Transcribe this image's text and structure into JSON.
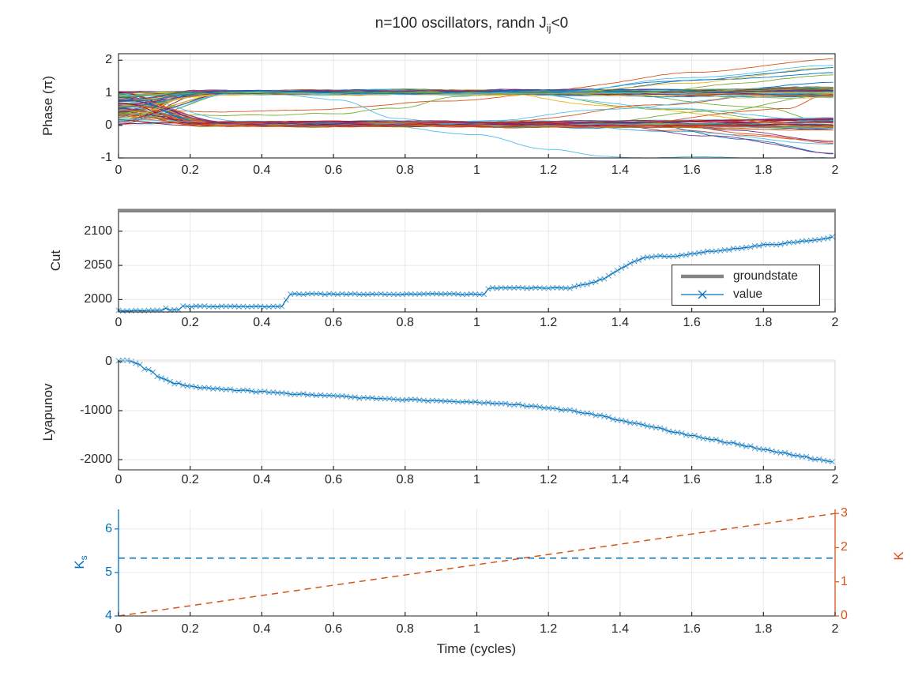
{
  "title": {
    "main": "n=100 oscillators, randn J",
    "sub": "ij",
    "end": "<0"
  },
  "xlabel": "Time (cycles)",
  "x_ticks": [
    {
      "v": 0,
      "label": "0"
    },
    {
      "v": 0.2,
      "label": "0.2"
    },
    {
      "v": 0.4,
      "label": "0.4"
    },
    {
      "v": 0.6,
      "label": "0.6"
    },
    {
      "v": 0.8,
      "label": "0.8"
    },
    {
      "v": 1,
      "label": "1"
    },
    {
      "v": 1.2,
      "label": "1.2"
    },
    {
      "v": 1.4,
      "label": "1.4"
    },
    {
      "v": 1.6,
      "label": "1.6"
    },
    {
      "v": 1.8,
      "label": "1.8"
    },
    {
      "v": 2,
      "label": "2"
    }
  ],
  "colors": {
    "axis": "#262626",
    "grid": "#e7e7e7",
    "grid_light_blue": "#e2ecf4",
    "frame_light": "#d9d9d9",
    "blue": "#0072BD",
    "orange": "#D95319",
    "gray": "#848484",
    "background": "#ffffff"
  },
  "chart_data": [
    {
      "name": "phase",
      "type": "line",
      "ylabel": "Phase (π)",
      "xlim": [
        0,
        2
      ],
      "ylim": [
        -1,
        2.2
      ],
      "grid": true,
      "yticks": [
        {
          "v": 2,
          "label": "2"
        },
        {
          "v": 1,
          "label": "1"
        },
        {
          "v": 0,
          "label": "0"
        },
        {
          "v": -1,
          "label": "-1"
        }
      ],
      "n_series": 100,
      "palette": [
        "#0072BD",
        "#D95319",
        "#EDB120",
        "#7E2F8E",
        "#77AC30",
        "#4DBEEE",
        "#A2142F"
      ],
      "bands": {
        "upper": 1.0,
        "lower": 0.04,
        "spread": 0.07,
        "converge_t": 0.2,
        "end_spread": 0.3
      },
      "generator": {
        "seed": 20,
        "start_min": 0.02,
        "start_max": 1.05,
        "noise_amp": 0.014,
        "sample_dt": 0.015,
        "divergers": {
          "up": 7,
          "down": 6,
          "cross_up": 4,
          "cross_down": 4,
          "t_start_min": 1.1,
          "t_start_max": 1.55,
          "up_min": 1.25,
          "up_max": 2.05,
          "down_min": -0.95,
          "down_max": -0.3
        }
      },
      "special_series": [
        {
          "idx": 5,
          "color": "#4DBEEE",
          "waypoints": [
            [
              0,
              0.62
            ],
            [
              0.22,
              0.05
            ],
            [
              0.72,
              0.02
            ],
            [
              1.0,
              -0.3
            ],
            [
              1.2,
              -0.72
            ],
            [
              1.35,
              -0.97
            ],
            [
              2,
              -1.0
            ]
          ]
        },
        {
          "idx": 8,
          "color": "#D95319",
          "waypoints": [
            [
              0,
              0.5
            ],
            [
              0.3,
              0.4
            ],
            [
              0.55,
              0.5
            ],
            [
              0.9,
              0.72
            ],
            [
              1.15,
              0.95
            ],
            [
              1.4,
              1.0
            ],
            [
              2,
              1.02
            ]
          ]
        },
        {
          "idx": 11,
          "color": "#77AC30",
          "waypoints": [
            [
              0,
              0.35
            ],
            [
              0.4,
              0.3
            ],
            [
              0.6,
              0.35
            ],
            [
              0.78,
              0.55
            ],
            [
              0.95,
              0.9
            ],
            [
              1.1,
              1.0
            ],
            [
              2,
              0.98
            ]
          ]
        },
        {
          "idx": 16,
          "color": "#4DBEEE",
          "waypoints": [
            [
              0,
              0.9
            ],
            [
              0.45,
              0.95
            ],
            [
              0.62,
              0.78
            ],
            [
              0.78,
              0.22
            ],
            [
              0.9,
              0.08
            ],
            [
              1.5,
              0.05
            ],
            [
              2,
              0.0
            ]
          ]
        }
      ]
    },
    {
      "name": "cut",
      "type": "line",
      "ylabel": "Cut",
      "ylim": [
        1982,
        2132
      ],
      "yticks": [
        {
          "v": 2100,
          "label": "2100"
        },
        {
          "v": 2050,
          "label": "2050"
        },
        {
          "v": 2000,
          "label": "2000"
        }
      ],
      "legend": [
        {
          "label": "groundstate",
          "color": "#848484"
        },
        {
          "label": "value",
          "color": "#0072BD"
        }
      ],
      "groundstate": 2130,
      "marker": "x",
      "sample_dt": 0.012,
      "keypoints": [
        [
          0,
          1984
        ],
        [
          0.12,
          1984
        ],
        [
          0.125,
          1992
        ],
        [
          0.135,
          1985
        ],
        [
          0.17,
          1985
        ],
        [
          0.18,
          1990
        ],
        [
          0.46,
          1990
        ],
        [
          0.475,
          2008
        ],
        [
          1.02,
          2008
        ],
        [
          1.035,
          2017
        ],
        [
          1.26,
          2017
        ],
        [
          1.3,
          2022
        ],
        [
          1.33,
          2026
        ],
        [
          1.36,
          2032
        ],
        [
          1.4,
          2045
        ],
        [
          1.43,
          2054
        ],
        [
          1.46,
          2060
        ],
        [
          1.49,
          2063
        ],
        [
          1.56,
          2064
        ],
        [
          1.6,
          2067
        ],
        [
          1.64,
          2070
        ],
        [
          1.7,
          2073
        ],
        [
          1.75,
          2076
        ],
        [
          1.8,
          2080
        ],
        [
          1.84,
          2081
        ],
        [
          1.88,
          2084
        ],
        [
          1.92,
          2086
        ],
        [
          1.96,
          2088
        ],
        [
          2,
          2092
        ]
      ]
    },
    {
      "name": "lyapunov",
      "type": "line",
      "ylabel": "Lyapunov",
      "ylim": [
        -2210,
        33
      ],
      "yticks": [
        {
          "v": 0,
          "label": "0"
        },
        {
          "v": -1000,
          "label": "-1000"
        },
        {
          "v": -2000,
          "label": "-2000"
        }
      ],
      "marker": "x",
      "sample_dt": 0.012,
      "jitter": 12,
      "keypoints": [
        [
          0,
          10
        ],
        [
          0.02,
          40
        ],
        [
          0.05,
          -30
        ],
        [
          0.08,
          -160
        ],
        [
          0.12,
          -330
        ],
        [
          0.16,
          -440
        ],
        [
          0.2,
          -500
        ],
        [
          0.25,
          -540
        ],
        [
          0.3,
          -565
        ],
        [
          0.35,
          -590
        ],
        [
          0.4,
          -615
        ],
        [
          0.5,
          -660
        ],
        [
          0.6,
          -700
        ],
        [
          0.7,
          -745
        ],
        [
          0.8,
          -775
        ],
        [
          0.9,
          -800
        ],
        [
          1,
          -825
        ],
        [
          1.05,
          -845
        ],
        [
          1.1,
          -870
        ],
        [
          1.15,
          -905
        ],
        [
          1.2,
          -945
        ],
        [
          1.25,
          -990
        ],
        [
          1.3,
          -1040
        ],
        [
          1.35,
          -1110
        ],
        [
          1.4,
          -1190
        ],
        [
          1.45,
          -1270
        ],
        [
          1.5,
          -1350
        ],
        [
          1.55,
          -1430
        ],
        [
          1.6,
          -1510
        ],
        [
          1.65,
          -1580
        ],
        [
          1.7,
          -1650
        ],
        [
          1.75,
          -1720
        ],
        [
          1.8,
          -1790
        ],
        [
          1.85,
          -1860
        ],
        [
          1.9,
          -1930
        ],
        [
          1.95,
          -1990
        ],
        [
          2,
          -2060
        ]
      ]
    },
    {
      "name": "coupling",
      "type": "line",
      "style": "dashed",
      "left": {
        "label_main": "K",
        "label_sub": "s",
        "color": "#0072BD",
        "ylim": [
          4,
          6.45
        ],
        "yticks": [
          {
            "v": 6,
            "label": "6"
          },
          {
            "v": 5,
            "label": "5"
          },
          {
            "v": 4,
            "label": "4"
          }
        ],
        "value": 5.33
      },
      "right": {
        "label": "K",
        "color": "#D95319",
        "ylim": [
          0,
          3.12
        ],
        "yticks": [
          {
            "v": 3,
            "label": "3"
          },
          {
            "v": 2,
            "label": "2"
          },
          {
            "v": 1,
            "label": "1"
          },
          {
            "v": 0,
            "label": "0"
          }
        ],
        "start": [
          0,
          0
        ],
        "end": [
          2,
          3
        ]
      }
    }
  ]
}
